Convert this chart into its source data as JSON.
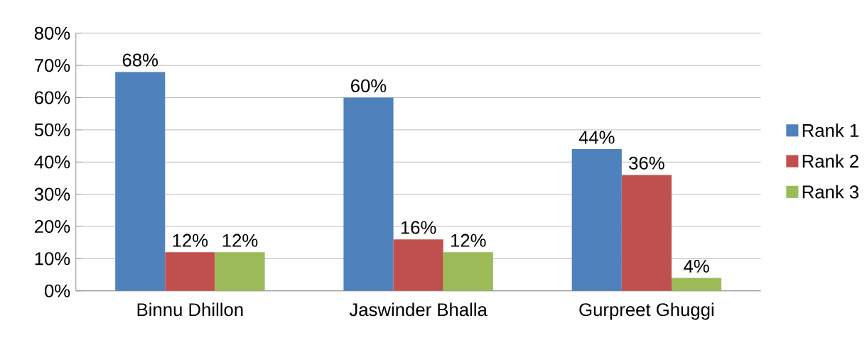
{
  "chart_data": {
    "type": "bar",
    "categories": [
      "Binnu Dhillon",
      "Jaswinder Bhalla",
      "Gurpreet Ghuggi"
    ],
    "series": [
      {
        "name": "Rank 1",
        "color": "#4f81bd",
        "values": [
          68,
          60,
          44
        ],
        "value_labels": [
          "68%",
          "60%",
          "44%"
        ]
      },
      {
        "name": "Rank 2",
        "color": "#c0504d",
        "values": [
          12,
          16,
          36
        ],
        "value_labels": [
          "12%",
          "16%",
          "36%"
        ]
      },
      {
        "name": "Rank 3",
        "color": "#9bbb59",
        "values": [
          12,
          12,
          4
        ],
        "value_labels": [
          "12%",
          "12%",
          "4%"
        ]
      }
    ],
    "ylim": [
      0,
      80
    ],
    "yticks": [
      {
        "value": 0,
        "label": "0%"
      },
      {
        "value": 10,
        "label": "10%"
      },
      {
        "value": 20,
        "label": "20%"
      },
      {
        "value": 30,
        "label": "30%"
      },
      {
        "value": 40,
        "label": "40%"
      },
      {
        "value": 50,
        "label": "50%"
      },
      {
        "value": 60,
        "label": "60%"
      },
      {
        "value": 70,
        "label": "70%"
      },
      {
        "value": 80,
        "label": "80%"
      }
    ],
    "grid": "y",
    "legend": "right"
  }
}
